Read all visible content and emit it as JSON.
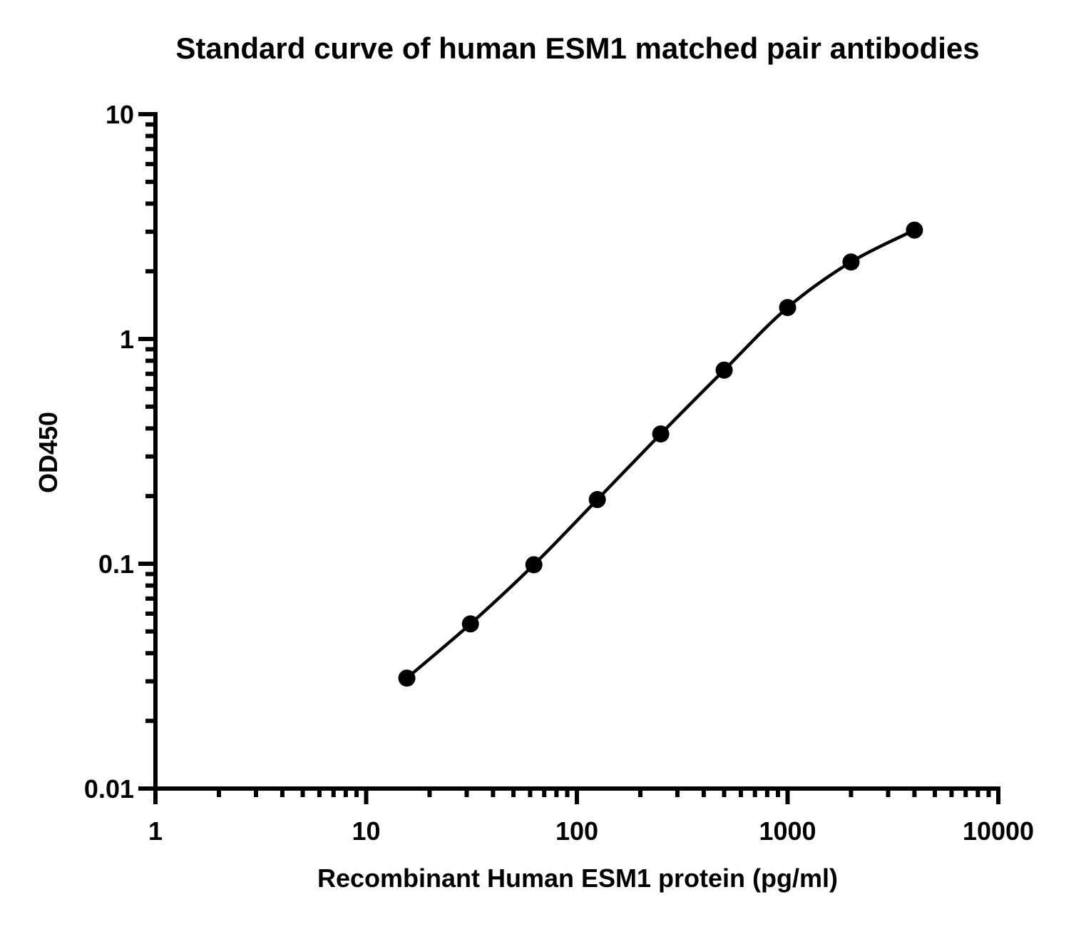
{
  "chart_data": {
    "type": "scatter",
    "title": "Standard curve of human ESM1 matched pair antibodies",
    "xlabel": "Recombinant Human ESM1 protein (pg/ml)",
    "ylabel": "OD450",
    "xscale": "log",
    "yscale": "log",
    "xlim": [
      1,
      10000
    ],
    "ylim": [
      0.01,
      10
    ],
    "x_ticks": [
      {
        "value": 1,
        "label": "1"
      },
      {
        "value": 10,
        "label": "10"
      },
      {
        "value": 100,
        "label": "100"
      },
      {
        "value": 1000,
        "label": "1000"
      },
      {
        "value": 10000,
        "label": "10000"
      }
    ],
    "y_ticks": [
      {
        "value": 0.01,
        "label": "0.01"
      },
      {
        "value": 0.1,
        "label": "0.1"
      },
      {
        "value": 1,
        "label": "1"
      },
      {
        "value": 10,
        "label": "10"
      }
    ],
    "grid": false,
    "legend": "none",
    "series": [
      {
        "x": [
          15.6,
          31.25,
          62.5,
          125,
          250,
          500,
          1000,
          2000,
          4000
        ],
        "y": [
          0.031,
          0.054,
          0.099,
          0.193,
          0.378,
          0.727,
          1.38,
          2.2,
          3.05
        ],
        "marker": "circle",
        "line": "fitted-curve",
        "color": "#000000"
      }
    ]
  }
}
